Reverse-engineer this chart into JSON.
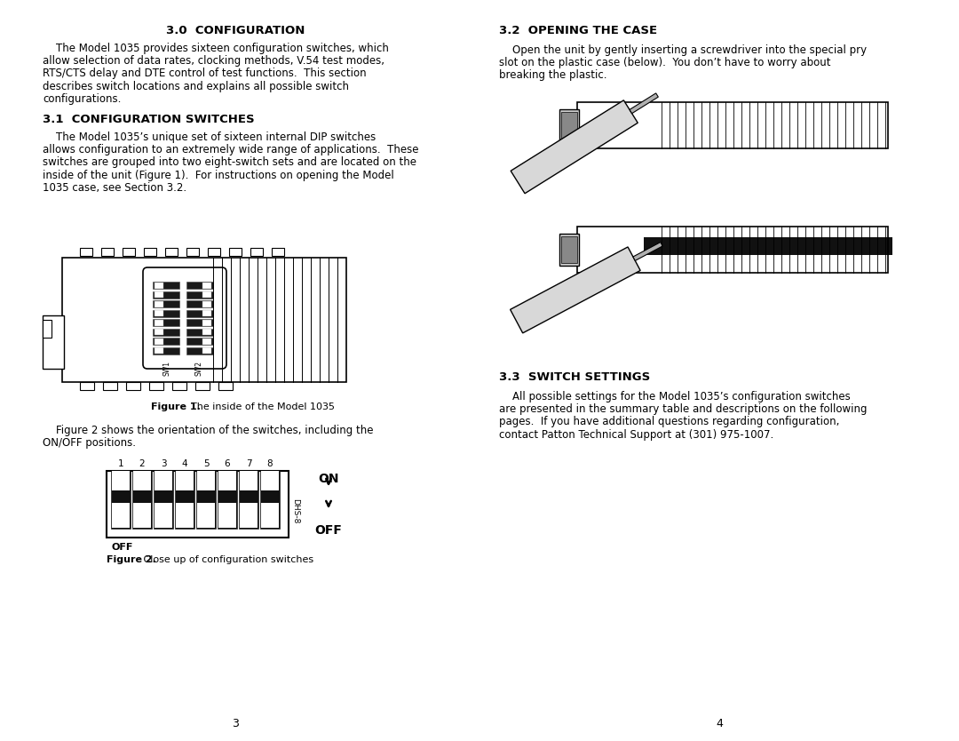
{
  "background_color": "#ffffff",
  "page_width": 10.8,
  "page_height": 8.34,
  "left_column": {
    "section_30_title": "3.0  CONFIGURATION",
    "section_30_body_lines": [
      "    The Model 1035 provides sixteen configuration switches, which",
      "allow selection of data rates, clocking methods, V.54 test modes,",
      "RTS/CTS delay and DTE control of test functions.  This section",
      "describes switch locations and explains all possible switch",
      "configurations."
    ],
    "section_31_title": "3.1  CONFIGURATION SWITCHES",
    "section_31_body_lines": [
      "    The Model 1035’s unique set of sixteen internal DIP switches",
      "allows configuration to an extremely wide range of applications.  These",
      "switches are grouped into two eight-switch sets and are located on the",
      "inside of the unit (Figure 1).  For instructions on opening the Model",
      "1035 case, see Section 3.2."
    ],
    "fig1_caption_bold": "Figure 1.",
    "fig1_caption_rest": "  The inside of the Model 1035",
    "section_fig2_intro_lines": [
      "    Figure 2 shows the orientation of the switches, including the",
      "ON/OFF positions."
    ],
    "fig2_caption_bold": "Figure 2.",
    "fig2_caption_rest": " Close up of configuration switches",
    "page_num_left": "3"
  },
  "right_column": {
    "section_32_title": "3.2  OPENING THE CASE",
    "section_32_body_lines": [
      "    Open the unit by gently inserting a screwdriver into the special pry",
      "slot on the plastic case (below).  You don’t have to worry about",
      "breaking the plastic."
    ],
    "section_33_title": "3.3  SWITCH SETTINGS",
    "section_33_body_lines": [
      "    All possible settings for the Model 1035’s configuration switches",
      "are presented in the summary table and descriptions on the following",
      "pages.  If you have additional questions regarding configuration,",
      "contact Patton Technical Support at (301) 975-1007."
    ],
    "page_num_right": "4"
  }
}
